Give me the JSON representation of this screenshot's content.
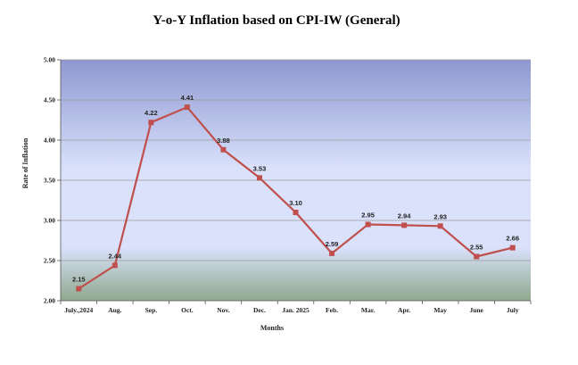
{
  "chart_data": {
    "type": "line",
    "title": "Y-o-Y Inflation based on CPI-IW (General)",
    "xlabel": "Months",
    "ylabel": "Rate of Inflation",
    "categories": [
      "July.,2024",
      "Aug.",
      "Sep.",
      "Oct.",
      "Nov.",
      "Dec.",
      "Jan. 2025",
      "Feb.",
      "Mar.",
      "Apr.",
      "May",
      "June",
      "July"
    ],
    "values": [
      2.15,
      2.44,
      4.22,
      4.41,
      3.88,
      3.53,
      3.1,
      2.59,
      2.95,
      2.94,
      2.93,
      2.55,
      2.66
    ],
    "data_labels": [
      "2.15",
      "2.44",
      "4.22",
      "4.41",
      "3.88",
      "3.53",
      "3.10",
      "2.59",
      "2.95",
      "2.94",
      "2.93",
      "2.55",
      "2.66"
    ],
    "ylim": [
      2.0,
      5.0
    ],
    "yticks": [
      "2.00",
      "2.50",
      "3.00",
      "3.50",
      "4.00",
      "4.50",
      "5.00"
    ],
    "grid": true,
    "legend": "none",
    "colors": {
      "line": "#c0504d",
      "marker": "#c0504d",
      "gradient_top": "#8e98d0",
      "gradient_mid": "#d9e1fb",
      "gradient_bottom": "#8fa88c",
      "gridline": "#9a9a9a"
    }
  }
}
